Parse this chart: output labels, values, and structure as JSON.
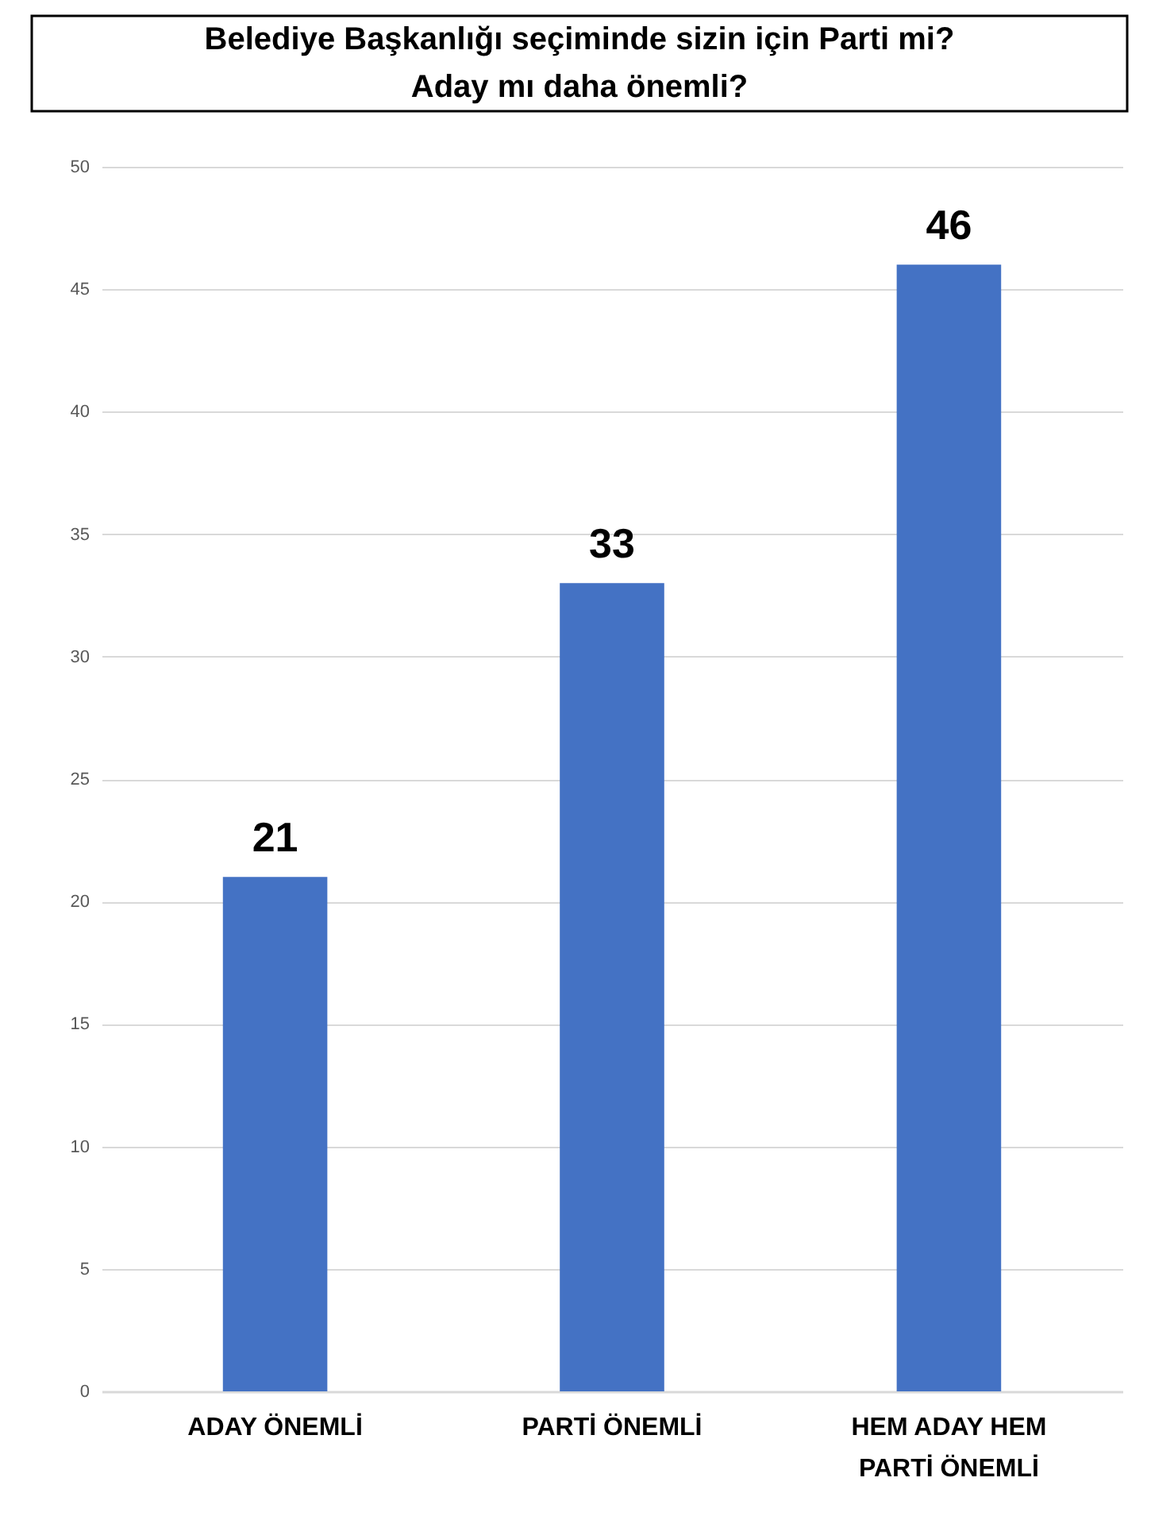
{
  "chart_data": {
    "type": "bar",
    "title": "Belediye Başkanlığı seçiminde sizin için Parti mi? Aday mı daha önemli?",
    "categories": [
      "ADAY ÖNEMLİ",
      "PARTİ ÖNEMLİ",
      "HEM ADAY HEM PARTİ ÖNEMLİ"
    ],
    "values": [
      21,
      33,
      46
    ],
    "color": "#4472c4",
    "ylim": [
      0,
      50
    ],
    "yticks": [
      0,
      5,
      10,
      15,
      20,
      25,
      30,
      35,
      40,
      45,
      50
    ],
    "grid": true,
    "data_labels": true
  }
}
